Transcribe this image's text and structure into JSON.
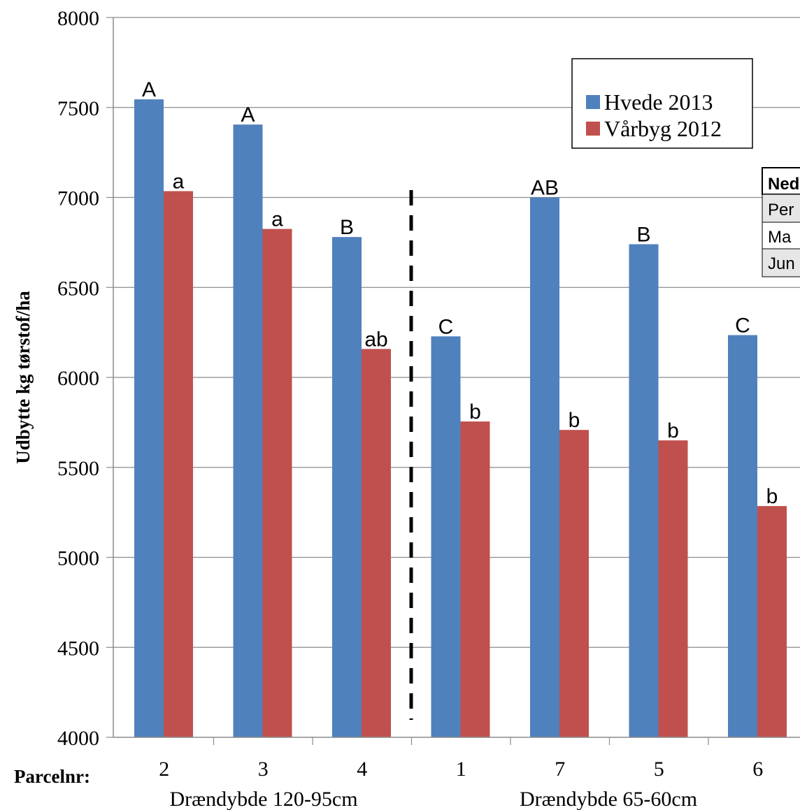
{
  "chart_data": {
    "type": "bar",
    "ylabel": "Udbytte kg tørstof/ha",
    "xlabel": "Parcelnr:",
    "ylim": [
      4000,
      8000
    ],
    "yticks": [
      4000,
      4500,
      5000,
      5500,
      6000,
      6500,
      7000,
      7500,
      8000
    ],
    "grid": "horizontal",
    "categories": [
      "2",
      "3",
      "4",
      "1",
      "7",
      "5",
      "6"
    ],
    "groups": [
      {
        "label": "Drændybde 120-95cm",
        "categories": [
          "2",
          "3",
          "4"
        ]
      },
      {
        "label": "Drændybde 65-60cm",
        "categories": [
          "1",
          "7",
          "5",
          "6"
        ]
      }
    ],
    "series": [
      {
        "name": "Hvede 2013",
        "color": "#4f81bd",
        "values": [
          7545,
          7405,
          6780,
          6228,
          7000,
          6740,
          6235
        ],
        "sig_labels": [
          "A",
          "A",
          "B",
          "C",
          "AB",
          "B",
          "C"
        ]
      },
      {
        "name": "Vårbyg 2012",
        "color": "#c0504d",
        "values": [
          7035,
          6825,
          6158,
          5755,
          5708,
          5650,
          5285
        ],
        "sig_labels": [
          "a",
          "a",
          "ab",
          "b",
          "b",
          "b",
          "b"
        ]
      }
    ],
    "legend_position": "top-right",
    "divider_after_category": "4",
    "side_table": {
      "header": "Ned",
      "rows": [
        "Per",
        "Ma",
        "Jun"
      ]
    }
  }
}
